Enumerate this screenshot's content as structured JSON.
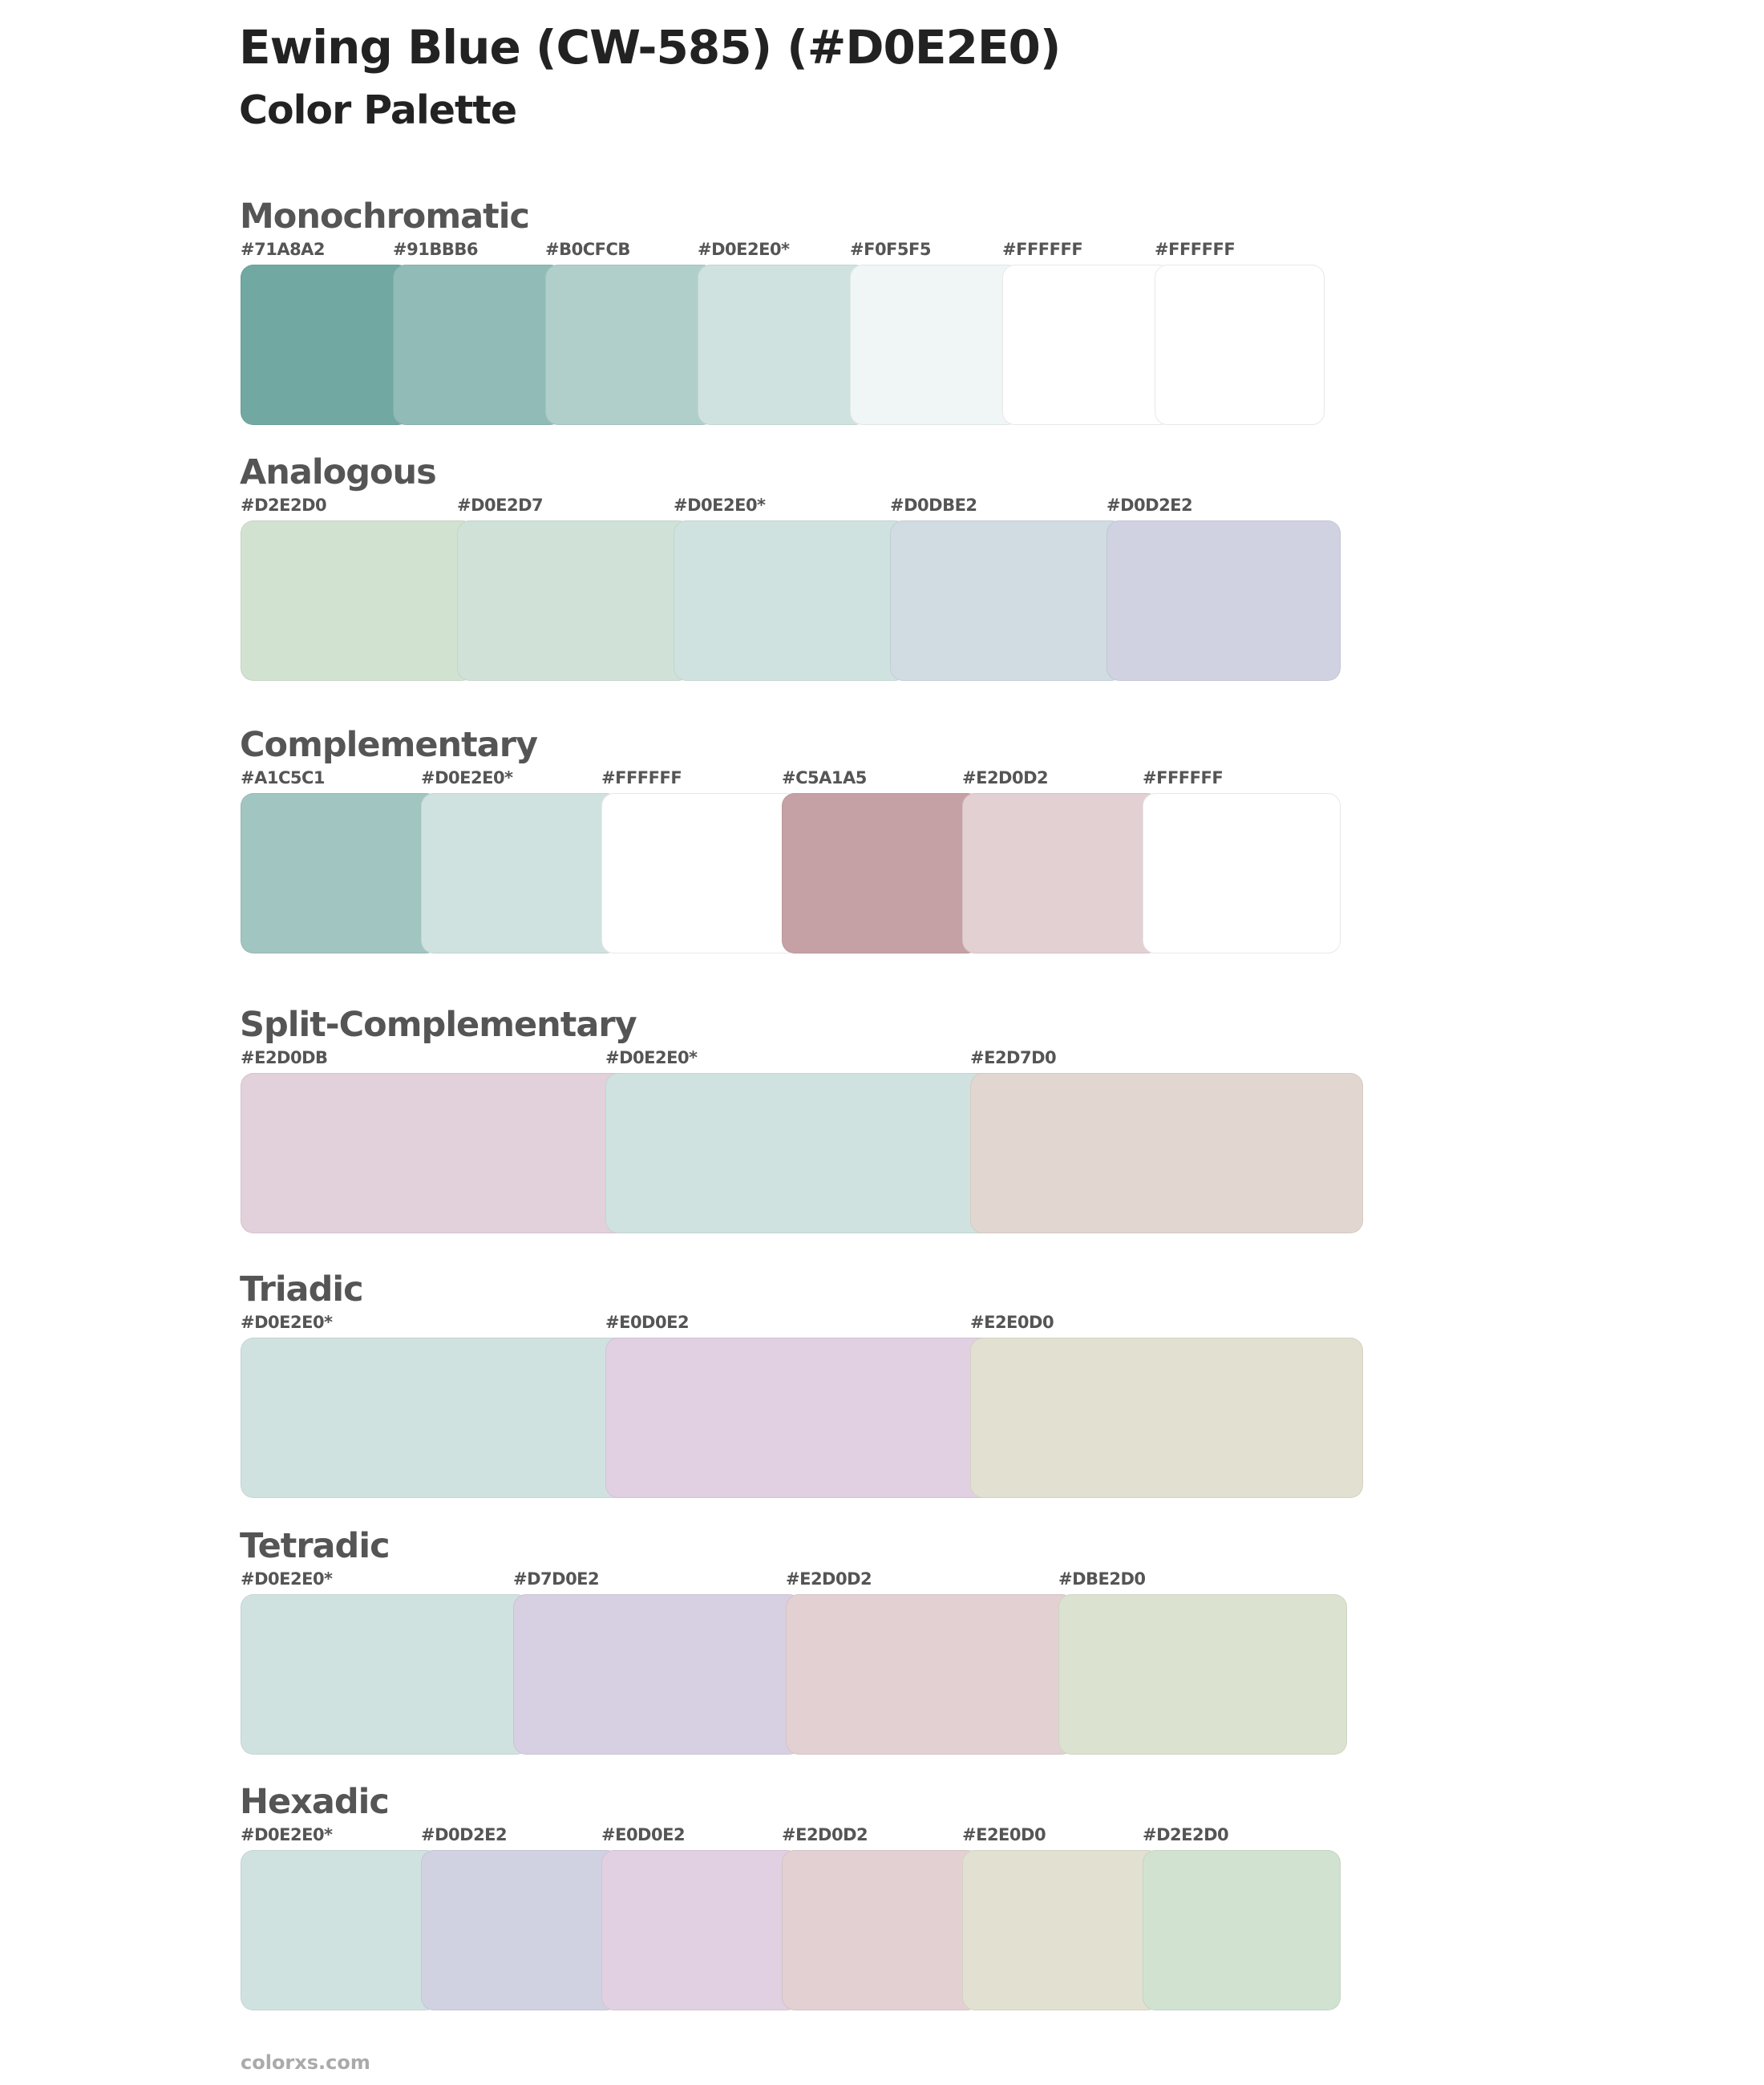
{
  "header": {
    "title": "Ewing Blue (CW-585) (#D0E2E0)",
    "subtitle": "Color Palette"
  },
  "sections": [
    {
      "name": "Monochromatic",
      "swatches": [
        {
          "label": "#71A8A2",
          "color": "#71A8A2"
        },
        {
          "label": "#91BBB6",
          "color": "#91BBB6"
        },
        {
          "label": "#B0CFCB",
          "color": "#B0CFCB"
        },
        {
          "label": "#D0E2E0*",
          "color": "#D0E2E0"
        },
        {
          "label": "#F0F5F5",
          "color": "#F0F5F5"
        },
        {
          "label": "#FFFFFF",
          "color": "#FFFFFF"
        },
        {
          "label": "#FFFFFF",
          "color": "#FFFFFF"
        }
      ]
    },
    {
      "name": "Analogous",
      "swatches": [
        {
          "label": "#D2E2D0",
          "color": "#D2E2D0"
        },
        {
          "label": "#D0E2D7",
          "color": "#D0E2D7"
        },
        {
          "label": "#D0E2E0*",
          "color": "#D0E2E0"
        },
        {
          "label": "#D0DBE2",
          "color": "#D0DBE2"
        },
        {
          "label": "#D0D2E2",
          "color": "#D0D2E2"
        }
      ]
    },
    {
      "name": "Complementary",
      "swatches": [
        {
          "label": "#A1C5C1",
          "color": "#A1C5C1"
        },
        {
          "label": "#D0E2E0*",
          "color": "#D0E2E0"
        },
        {
          "label": "#FFFFFF",
          "color": "#FFFFFF"
        },
        {
          "label": "#C5A1A5",
          "color": "#C5A1A5"
        },
        {
          "label": "#E2D0D2",
          "color": "#E2D0D2"
        },
        {
          "label": "#FFFFFF",
          "color": "#FFFFFF"
        }
      ]
    },
    {
      "name": "Split-Complementary",
      "swatches": [
        {
          "label": "#E2D0DB",
          "color": "#E2D0DB"
        },
        {
          "label": "#D0E2E0*",
          "color": "#D0E2E0"
        },
        {
          "label": "#E2D7D0",
          "color": "#E2D7D0"
        }
      ]
    },
    {
      "name": "Triadic",
      "swatches": [
        {
          "label": "#D0E2E0*",
          "color": "#D0E2E0"
        },
        {
          "label": "#E0D0E2",
          "color": "#E0D0E2"
        },
        {
          "label": "#E2E0D0",
          "color": "#E2E0D0"
        }
      ]
    },
    {
      "name": "Tetradic",
      "swatches": [
        {
          "label": "#D0E2E0*",
          "color": "#D0E2E0"
        },
        {
          "label": "#D7D0E2",
          "color": "#D7D0E2"
        },
        {
          "label": "#E2D0D2",
          "color": "#E2D0D2"
        },
        {
          "label": "#DBE2D0",
          "color": "#DBE2D0"
        }
      ]
    },
    {
      "name": "Hexadic",
      "swatches": [
        {
          "label": "#D0E2E0*",
          "color": "#D0E2E0"
        },
        {
          "label": "#D0D2E2",
          "color": "#D0D2E2"
        },
        {
          "label": "#E0D0E2",
          "color": "#E0D0E2"
        },
        {
          "label": "#E2D0D2",
          "color": "#E2D0D2"
        },
        {
          "label": "#E2E0D0",
          "color": "#E2E0D0"
        },
        {
          "label": "#D2E2D0",
          "color": "#D2E2D0"
        }
      ]
    }
  ],
  "footer": {
    "site": "colorxs.com"
  }
}
